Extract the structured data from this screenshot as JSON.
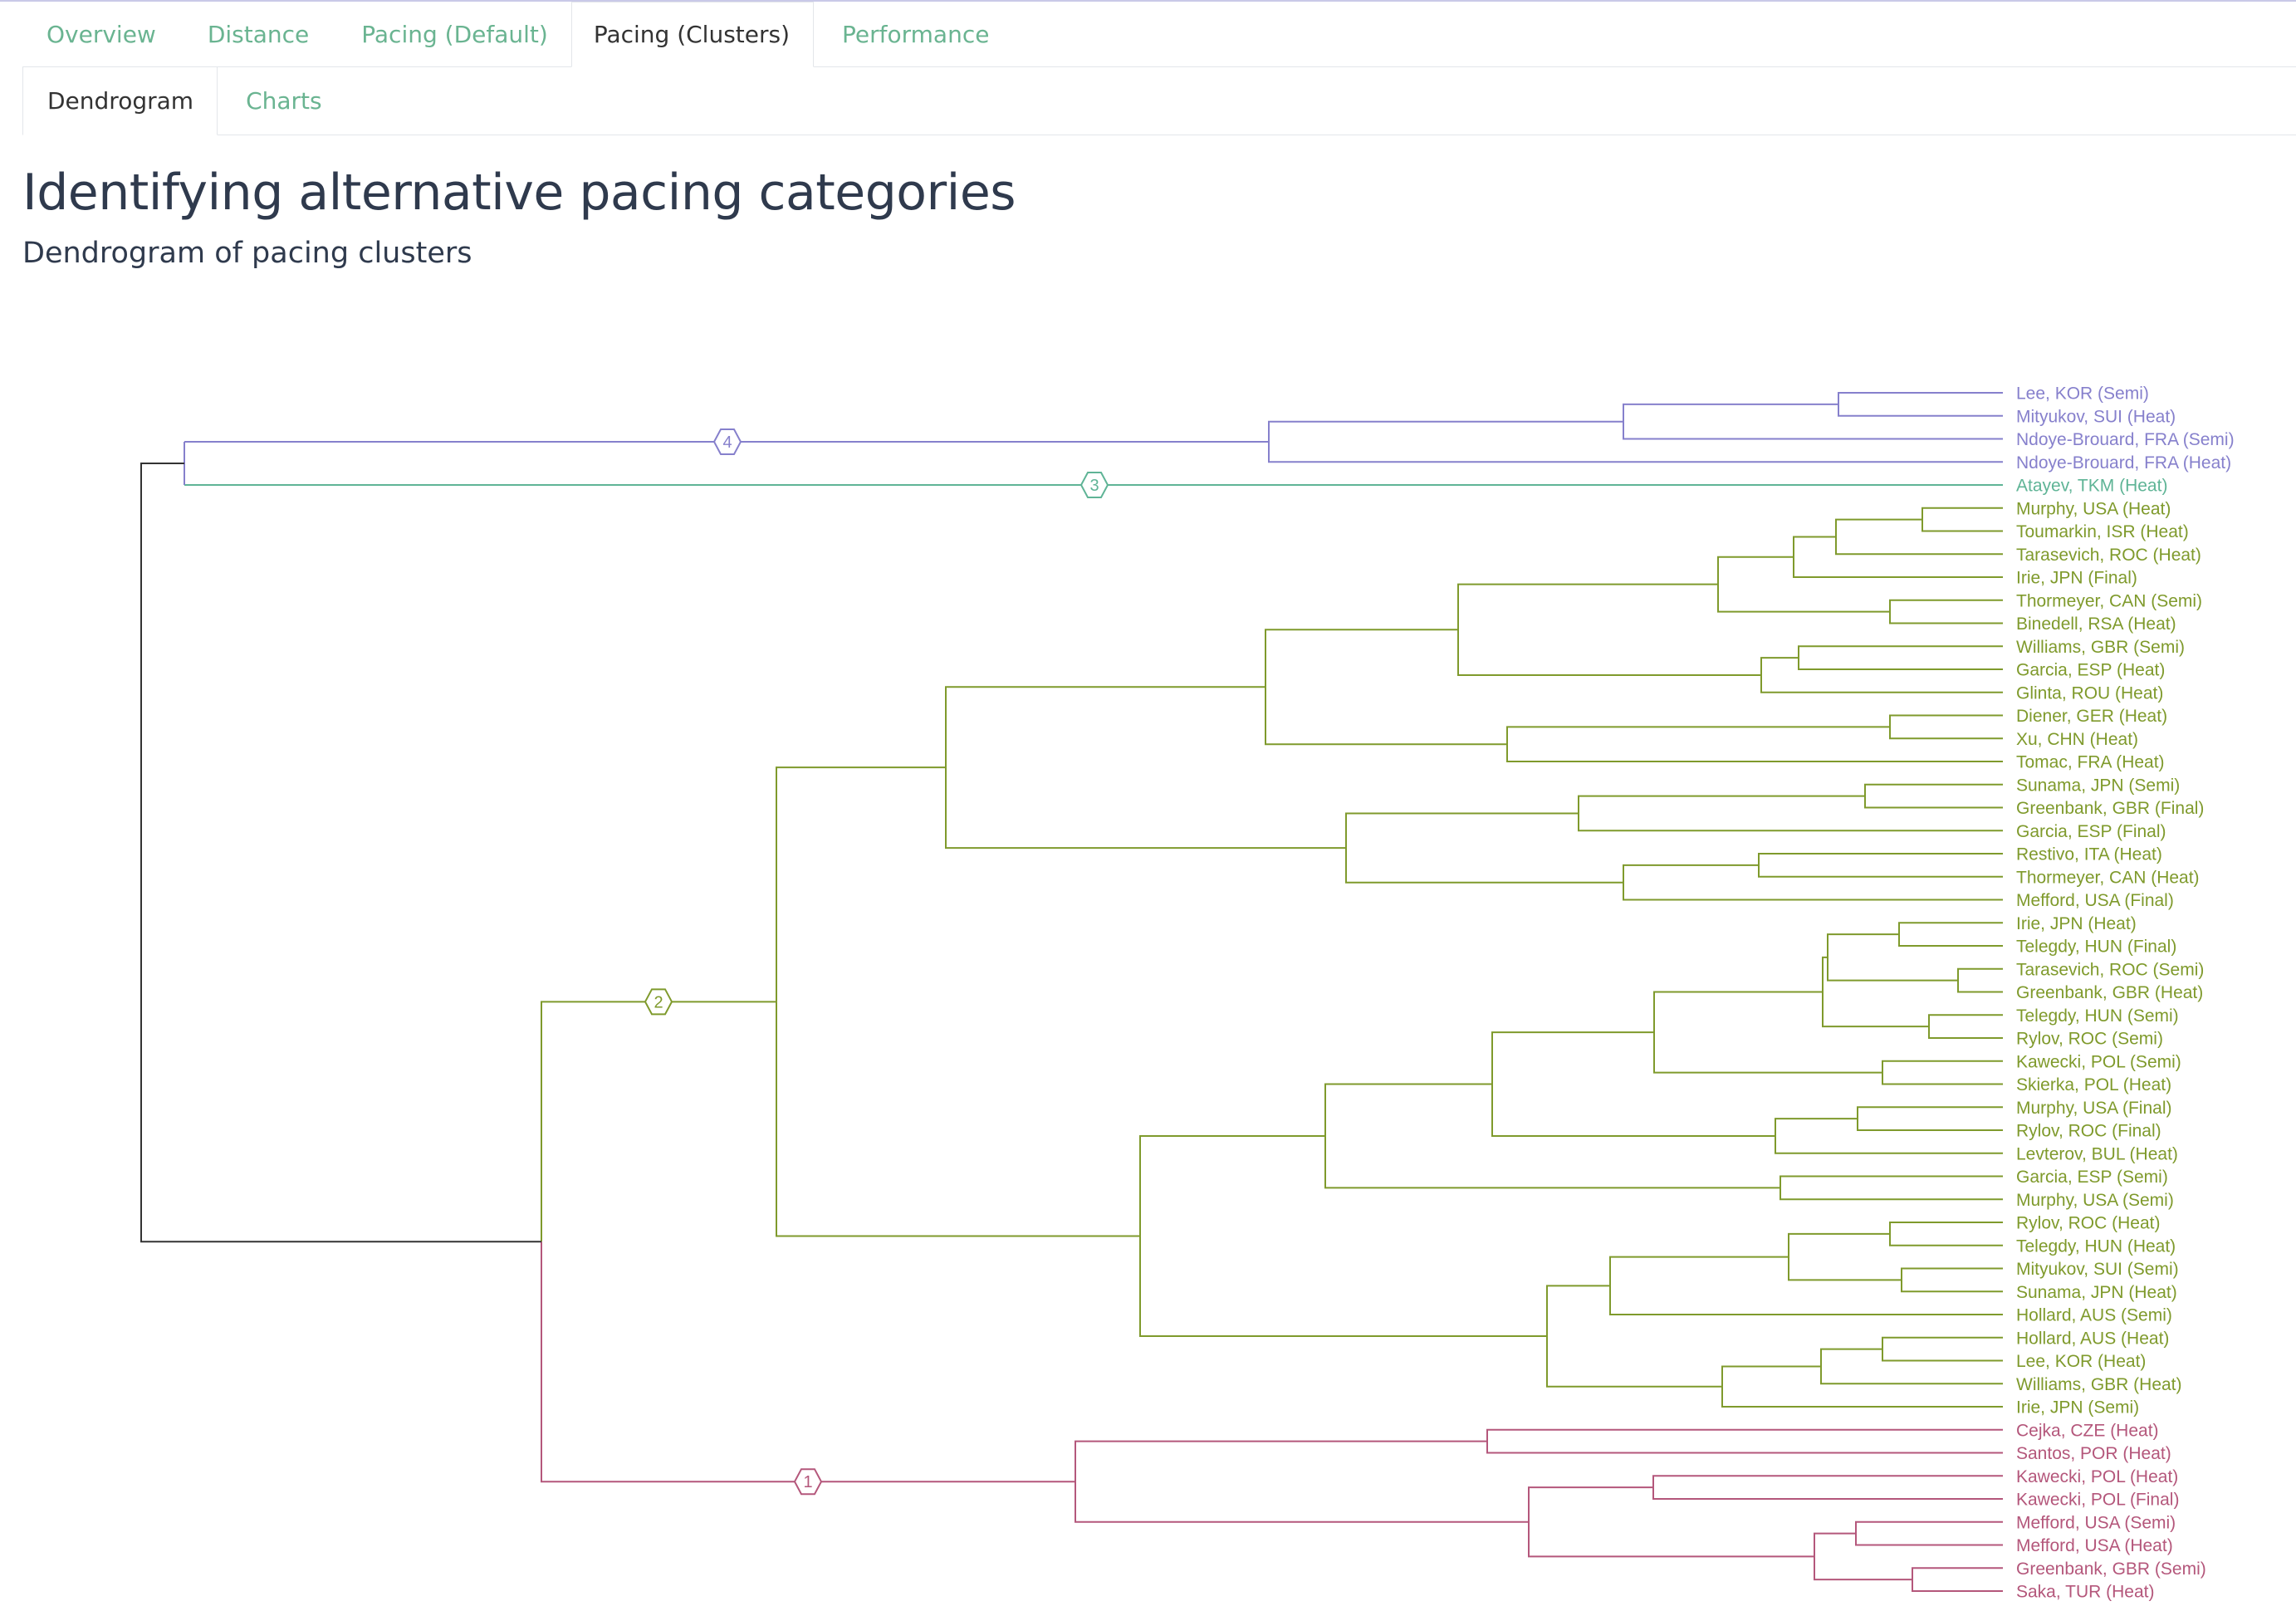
{
  "tabs": {
    "level1": [
      {
        "label": "Overview",
        "active": false
      },
      {
        "label": "Distance",
        "active": false
      },
      {
        "label": "Pacing (Default)",
        "active": false
      },
      {
        "label": "Pacing (Clusters)",
        "active": true
      },
      {
        "label": "Performance",
        "active": false
      }
    ],
    "level2": [
      {
        "label": "Dendrogram",
        "active": true
      },
      {
        "label": "Charts",
        "active": false
      }
    ]
  },
  "page": {
    "title": "Identifying alternative pacing categories",
    "subtitle": "Dendrogram of pacing clusters"
  },
  "colors": {
    "tab_inactive": "#6ab491",
    "tab_active": "#333333",
    "root_line": "#333333",
    "cluster_1": "#b4577b",
    "cluster_2": "#7f9a2c",
    "cluster_3": "#5fb496",
    "cluster_4": "#8680cc"
  },
  "chart_data": {
    "type": "dendrogram",
    "title": "",
    "clusters": [
      {
        "id": 4,
        "label": "4",
        "color": "#8680cc"
      },
      {
        "id": 3,
        "label": "3",
        "color": "#5fb496"
      },
      {
        "id": 2,
        "label": "2",
        "color": "#7f9a2c"
      },
      {
        "id": 1,
        "label": "1",
        "color": "#b4577b"
      }
    ],
    "leaves": [
      {
        "label": "Lee, KOR (Semi)",
        "cluster": 4
      },
      {
        "label": "Mityukov, SUI (Heat)",
        "cluster": 4
      },
      {
        "label": "Ndoye-Brouard, FRA (Semi)",
        "cluster": 4
      },
      {
        "label": "Ndoye-Brouard, FRA (Heat)",
        "cluster": 4
      },
      {
        "label": "Atayev, TKM (Heat)",
        "cluster": 3
      },
      {
        "label": "Murphy, USA (Heat)",
        "cluster": 2
      },
      {
        "label": "Toumarkin, ISR (Heat)",
        "cluster": 2
      },
      {
        "label": "Tarasevich, ROC (Heat)",
        "cluster": 2
      },
      {
        "label": "Irie, JPN (Final)",
        "cluster": 2
      },
      {
        "label": "Thormeyer, CAN (Semi)",
        "cluster": 2
      },
      {
        "label": "Binedell, RSA (Heat)",
        "cluster": 2
      },
      {
        "label": "Williams, GBR (Semi)",
        "cluster": 2
      },
      {
        "label": "Garcia, ESP (Heat)",
        "cluster": 2
      },
      {
        "label": "Glinta, ROU (Heat)",
        "cluster": 2
      },
      {
        "label": "Diener, GER (Heat)",
        "cluster": 2
      },
      {
        "label": "Xu, CHN (Heat)",
        "cluster": 2
      },
      {
        "label": "Tomac, FRA (Heat)",
        "cluster": 2
      },
      {
        "label": "Sunama, JPN (Semi)",
        "cluster": 2
      },
      {
        "label": "Greenbank, GBR (Final)",
        "cluster": 2
      },
      {
        "label": "Garcia, ESP (Final)",
        "cluster": 2
      },
      {
        "label": "Restivo, ITA (Heat)",
        "cluster": 2
      },
      {
        "label": "Thormeyer, CAN (Heat)",
        "cluster": 2
      },
      {
        "label": "Mefford, USA (Final)",
        "cluster": 2
      },
      {
        "label": "Irie, JPN (Heat)",
        "cluster": 2
      },
      {
        "label": "Telegdy, HUN (Final)",
        "cluster": 2
      },
      {
        "label": "Tarasevich, ROC (Semi)",
        "cluster": 2
      },
      {
        "label": "Greenbank, GBR (Heat)",
        "cluster": 2
      },
      {
        "label": "Telegdy, HUN (Semi)",
        "cluster": 2
      },
      {
        "label": "Rylov, ROC (Semi)",
        "cluster": 2
      },
      {
        "label": "Kawecki, POL (Semi)",
        "cluster": 2
      },
      {
        "label": "Skierka, POL (Heat)",
        "cluster": 2
      },
      {
        "label": "Murphy, USA (Final)",
        "cluster": 2
      },
      {
        "label": "Rylov, ROC (Final)",
        "cluster": 2
      },
      {
        "label": "Levterov, BUL (Heat)",
        "cluster": 2
      },
      {
        "label": "Garcia, ESP (Semi)",
        "cluster": 2
      },
      {
        "label": "Murphy, USA (Semi)",
        "cluster": 2
      },
      {
        "label": "Rylov, ROC (Heat)",
        "cluster": 2
      },
      {
        "label": "Telegdy, HUN (Heat)",
        "cluster": 2
      },
      {
        "label": "Mityukov, SUI (Semi)",
        "cluster": 2
      },
      {
        "label": "Sunama, JPN (Heat)",
        "cluster": 2
      },
      {
        "label": "Hollard, AUS (Semi)",
        "cluster": 2
      },
      {
        "label": "Hollard, AUS (Heat)",
        "cluster": 2
      },
      {
        "label": "Lee, KOR (Heat)",
        "cluster": 2
      },
      {
        "label": "Williams, GBR (Heat)",
        "cluster": 2
      },
      {
        "label": "Irie, JPN (Semi)",
        "cluster": 2
      },
      {
        "label": "Cejka, CZE (Heat)",
        "cluster": 1
      },
      {
        "label": "Santos, POR (Heat)",
        "cluster": 1
      },
      {
        "label": "Kawecki, POL (Heat)",
        "cluster": 1
      },
      {
        "label": "Kawecki, POL (Final)",
        "cluster": 1
      },
      {
        "label": "Mefford, USA (Semi)",
        "cluster": 1
      },
      {
        "label": "Mefford, USA (Heat)",
        "cluster": 1
      },
      {
        "label": "Greenbank, GBR (Semi)",
        "cluster": 1
      },
      {
        "label": "Saka, TUR (Heat)",
        "cluster": 1
      }
    ]
  }
}
